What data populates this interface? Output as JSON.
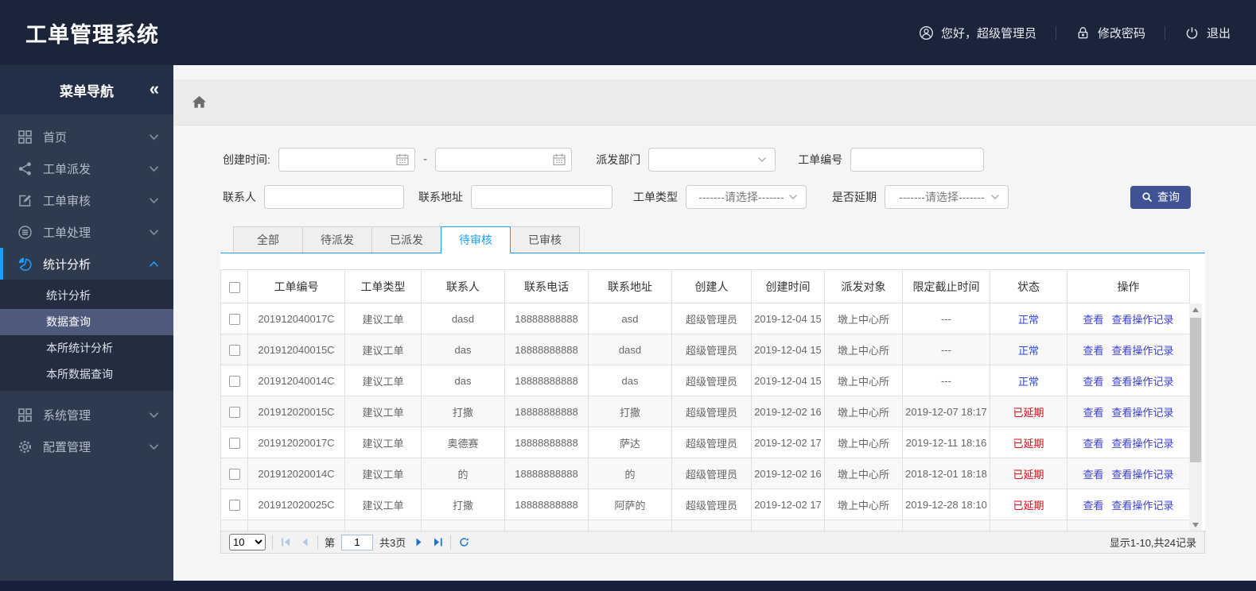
{
  "header": {
    "title": "工单管理系统",
    "greeting": "您好，超级管理员",
    "change_password": "修改密码",
    "logout": "退出"
  },
  "sidebar": {
    "title": "菜单导航",
    "collapse_glyph": "«",
    "items": [
      {
        "label": "首页",
        "icon": "grid-icon"
      },
      {
        "label": "工单派发",
        "icon": "share-icon"
      },
      {
        "label": "工单审核",
        "icon": "edit-icon"
      },
      {
        "label": "工单处理",
        "icon": "process-icon"
      },
      {
        "label": "统计分析",
        "icon": "pie-icon",
        "active": true,
        "expanded": true,
        "children": [
          {
            "label": "统计分析"
          },
          {
            "label": "数据查询",
            "selected": true
          },
          {
            "label": "本所统计分析"
          },
          {
            "label": "本所数据查询"
          }
        ]
      },
      {
        "label": "系统管理",
        "icon": "grid-icon"
      },
      {
        "label": "配置管理",
        "icon": "gear-icon"
      }
    ]
  },
  "filters": {
    "create_time_label": "创建时间:",
    "range_separator": "-",
    "dispatch_dept_label": "派发部门",
    "order_no_label": "工单编号",
    "contact_label": "联系人",
    "address_label": "联系地址",
    "order_type_label": "工单类型",
    "delay_label": "是否延期",
    "select_placeholder": "-------请选择-------",
    "search_button": "查询"
  },
  "tabs": [
    {
      "label": "全部"
    },
    {
      "label": "待派发"
    },
    {
      "label": "已派发"
    },
    {
      "label": "待审核",
      "active": true
    },
    {
      "label": "已审核"
    }
  ],
  "table": {
    "columns": [
      "工单编号",
      "工单类型",
      "联系人",
      "联系电话",
      "联系地址",
      "创建人",
      "创建时间",
      "派发对象",
      "限定截止时间",
      "状态",
      "操作"
    ],
    "actions": [
      "查看",
      "查看操作记录"
    ],
    "rows": [
      {
        "order_no": "201912040017C",
        "type": "建议工单",
        "contact": "dasd",
        "phone": "18888888888",
        "address": "asd",
        "creator": "超级管理员",
        "created": "2019-12-04 15",
        "target": "墩上中心所",
        "deadline": "---",
        "status": "正常",
        "status_type": "normal"
      },
      {
        "order_no": "201912040015C",
        "type": "建议工单",
        "contact": "das",
        "phone": "18888888888",
        "address": "dasd",
        "creator": "超级管理员",
        "created": "2019-12-04 15",
        "target": "墩上中心所",
        "deadline": "---",
        "status": "正常",
        "status_type": "normal"
      },
      {
        "order_no": "201912040014C",
        "type": "建议工单",
        "contact": "das",
        "phone": "18888888888",
        "address": "das",
        "creator": "超级管理员",
        "created": "2019-12-04 15",
        "target": "墩上中心所",
        "deadline": "---",
        "status": "正常",
        "status_type": "normal"
      },
      {
        "order_no": "201912020015C",
        "type": "建议工单",
        "contact": "打撒",
        "phone": "18888888888",
        "address": "打撒",
        "creator": "超级管理员",
        "created": "2019-12-02 16",
        "target": "墩上中心所",
        "deadline": "2019-12-07 18:17",
        "status": "已延期",
        "status_type": "delayed"
      },
      {
        "order_no": "201912020017C",
        "type": "建议工单",
        "contact": "奥德赛",
        "phone": "18888888888",
        "address": "萨达",
        "creator": "超级管理员",
        "created": "2019-12-02 17",
        "target": "墩上中心所",
        "deadline": "2019-12-11 18:16",
        "status": "已延期",
        "status_type": "delayed"
      },
      {
        "order_no": "201912020014C",
        "type": "建议工单",
        "contact": "的",
        "phone": "18888888888",
        "address": "的",
        "creator": "超级管理员",
        "created": "2019-12-02 16",
        "target": "墩上中心所",
        "deadline": "2018-12-01 18:18",
        "status": "已延期",
        "status_type": "delayed"
      },
      {
        "order_no": "201912020025C",
        "type": "建议工单",
        "contact": "打撒",
        "phone": "18888888888",
        "address": "阿萨的",
        "creator": "超级管理员",
        "created": "2019-12-02 17",
        "target": "墩上中心所",
        "deadline": "2019-12-28 18:10",
        "status": "已延期",
        "status_type": "delayed"
      }
    ]
  },
  "pagination": {
    "page_size": "10",
    "page_prefix": "第",
    "current_page": "1",
    "total_pages": "共3页",
    "summary": "显示1-10,共24记录"
  },
  "colors": {
    "accent": "#1e9fff",
    "link": "#3a3fd6",
    "status_normal": "#2b48d6",
    "status_delayed": "#e60012",
    "primary_button": "#3e5295",
    "header_bg": "#1b2438",
    "sidebar_bg": "#2e3a4e"
  }
}
